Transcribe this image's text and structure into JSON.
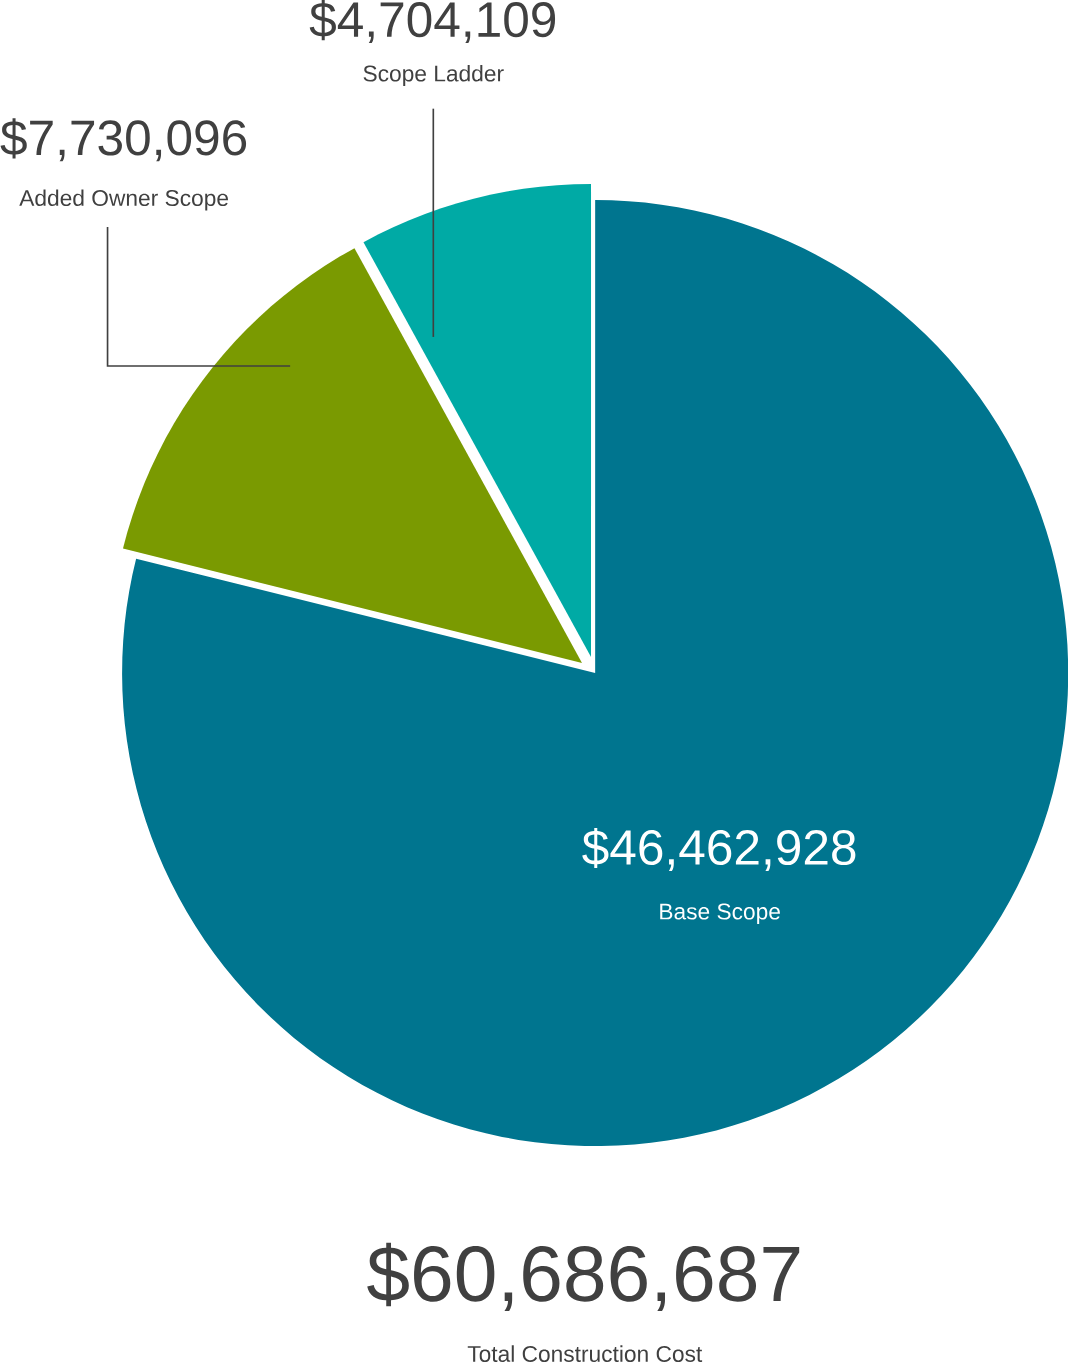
{
  "chart_data": {
    "type": "pie",
    "categories": [
      "Base Scope",
      "Added Owner Scope",
      "Scope Ladder"
    ],
    "values": [
      46462928,
      7730096,
      4704109
    ],
    "colors": [
      "#00758f",
      "#7a9a01",
      "#00aaa5"
    ],
    "value_labels": [
      "$46,462,928",
      "$7,730,096",
      "$4,704,109"
    ],
    "annotations": [
      "$60,686,687",
      "Total Construction Cost"
    ]
  }
}
